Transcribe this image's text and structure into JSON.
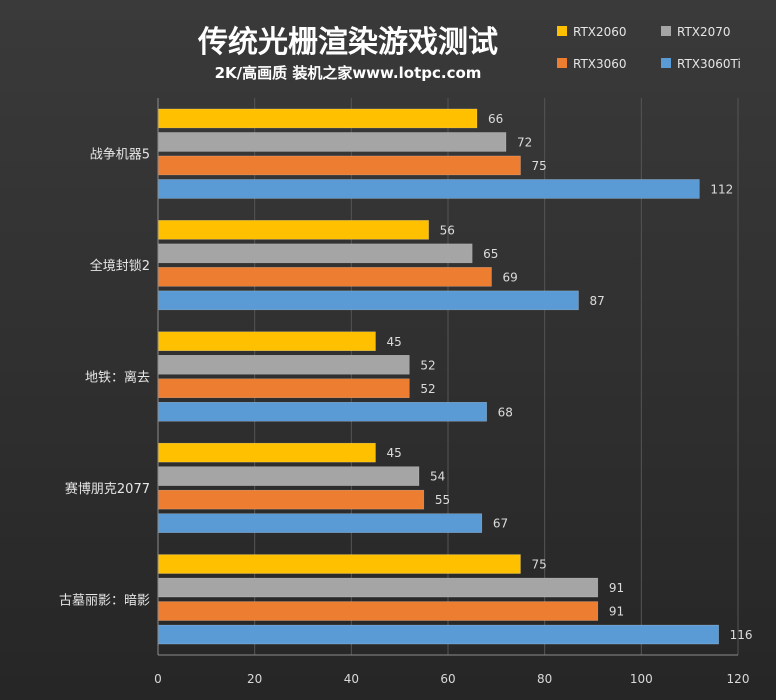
{
  "chart_data": {
    "type": "bar",
    "orientation": "horizontal",
    "title": "传统光栅渲染游戏测试",
    "subtitle": "2K/高画质 装机之家www.lotpc.com",
    "categories": [
      "战争机器5",
      "全境封锁2",
      "地铁：离去",
      "赛博朋克2077",
      "古墓丽影：暗影"
    ],
    "series": [
      {
        "name": "RTX2060",
        "color": "#ffc000",
        "values": [
          66,
          56,
          45,
          45,
          75
        ]
      },
      {
        "name": "RTX2070",
        "color": "#a5a5a5",
        "values": [
          72,
          65,
          52,
          54,
          91
        ]
      },
      {
        "name": "RTX3060",
        "color": "#ed7d31",
        "values": [
          75,
          69,
          52,
          55,
          91
        ]
      },
      {
        "name": "RTX3060Ti",
        "color": "#5b9bd5",
        "values": [
          112,
          87,
          68,
          67,
          116
        ]
      }
    ],
    "xlim": [
      0,
      120
    ],
    "xticks": [
      0,
      20,
      40,
      60,
      80,
      100,
      120
    ],
    "grid": true,
    "legend_position": "top-right"
  }
}
